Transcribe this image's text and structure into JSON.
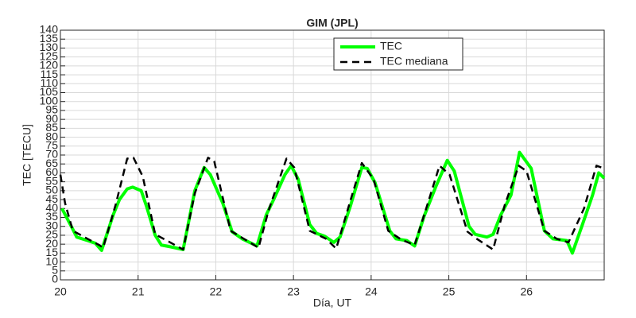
{
  "chart_data": {
    "type": "line",
    "title": "GIM (JPL)",
    "xlabel": "Día, UT",
    "ylabel": "TEC [TECU]",
    "xlim": [
      20,
      27
    ],
    "xticks": [
      20,
      21,
      22,
      23,
      24,
      25,
      26
    ],
    "ylim": [
      0,
      140
    ],
    "yticks": [
      0,
      5,
      10,
      15,
      20,
      25,
      30,
      35,
      40,
      45,
      50,
      55,
      60,
      65,
      70,
      75,
      80,
      85,
      90,
      95,
      100,
      105,
      110,
      115,
      120,
      125,
      130,
      135,
      140
    ],
    "grid": true,
    "legend": "top",
    "series": [
      {
        "name": "TEC",
        "color": "#00ff00",
        "style": "solid",
        "x": [
          20.02,
          20.14,
          20.21,
          20.35,
          20.45,
          20.53,
          20.68,
          20.76,
          20.86,
          20.93,
          21.04,
          21.11,
          21.22,
          21.3,
          21.42,
          21.58,
          21.73,
          21.85,
          21.93,
          22.09,
          22.21,
          22.34,
          22.53,
          22.65,
          22.75,
          22.89,
          22.97,
          23.06,
          23.21,
          23.3,
          23.4,
          23.52,
          23.6,
          23.73,
          23.88,
          23.95,
          24.05,
          24.24,
          24.32,
          24.46,
          24.56,
          24.68,
          24.83,
          24.98,
          25.07,
          25.26,
          25.34,
          25.49,
          25.57,
          25.67,
          25.8,
          25.91,
          26.06,
          26.23,
          26.34,
          26.52,
          26.59,
          26.72,
          26.85,
          26.93,
          27.0
        ],
        "values": [
          40,
          30,
          24,
          22,
          20.5,
          16.5,
          36.5,
          45,
          51,
          52,
          50,
          41,
          25,
          19.5,
          18.5,
          17,
          50,
          63,
          59,
          43,
          27,
          23,
          19,
          36.5,
          45.5,
          59,
          64,
          56.5,
          31,
          26,
          24.5,
          21,
          24,
          41,
          63,
          62.5,
          54.5,
          27.5,
          23,
          22,
          19,
          35.5,
          52,
          67,
          61,
          30,
          25.5,
          24,
          25.5,
          36.5,
          47.5,
          71.5,
          62.5,
          27.5,
          23,
          22,
          15,
          31,
          47.5,
          60,
          57
        ]
      },
      {
        "name": "TEC mediana",
        "color": "#000000",
        "style": "dashed",
        "x": [
          20.0,
          20.06,
          20.16,
          20.35,
          20.5,
          20.55,
          20.71,
          20.86,
          20.94,
          21.06,
          21.22,
          21.35,
          21.58,
          21.73,
          21.9,
          21.98,
          22.19,
          22.4,
          22.55,
          22.68,
          22.91,
          23.01,
          23.21,
          23.42,
          23.55,
          23.73,
          23.88,
          24.03,
          24.22,
          24.39,
          24.56,
          24.73,
          24.88,
          25.01,
          25.24,
          25.36,
          25.57,
          25.72,
          25.9,
          26.0,
          26.23,
          26.39,
          26.54,
          26.74,
          26.9,
          27.0
        ],
        "values": [
          59,
          43,
          27.5,
          23,
          19.5,
          18,
          42,
          68,
          68.5,
          58,
          25.5,
          22.5,
          17,
          48.5,
          68.5,
          66.5,
          27.5,
          22,
          18,
          39,
          68,
          63,
          27.5,
          23,
          17.5,
          44,
          65.5,
          56.5,
          27.5,
          22.5,
          19.5,
          43,
          64,
          59,
          27,
          23,
          17,
          42,
          64,
          61,
          27.5,
          23,
          21,
          40,
          64,
          62.5
        ]
      }
    ]
  }
}
